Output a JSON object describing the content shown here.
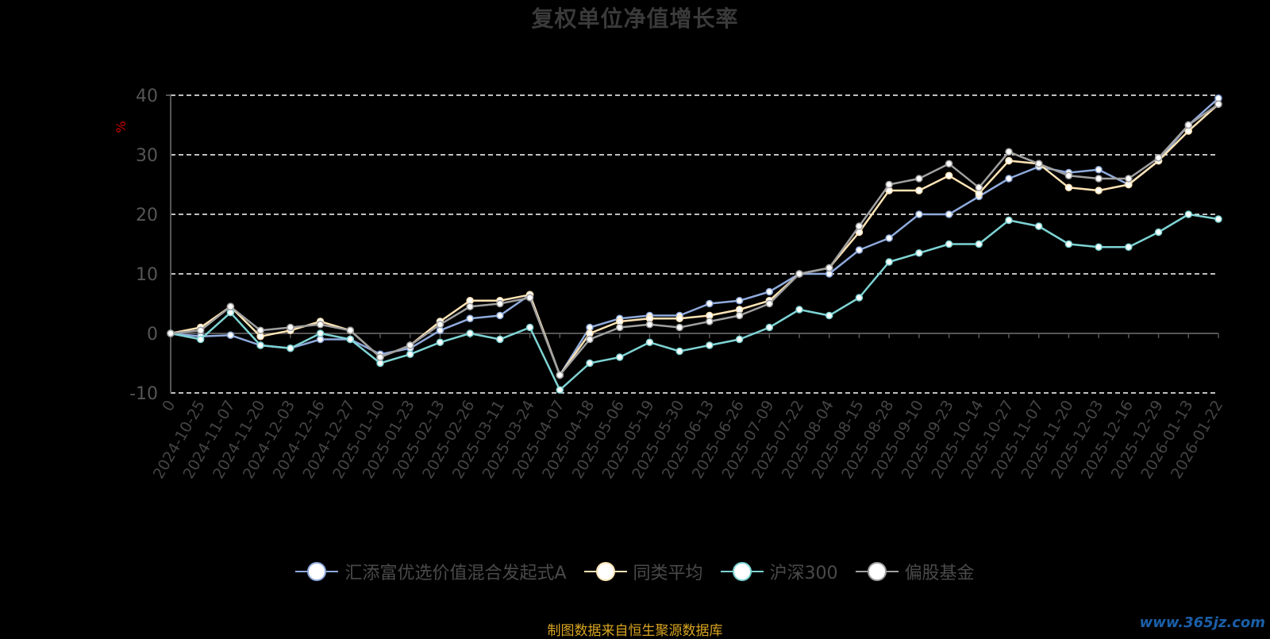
{
  "chart_data": {
    "type": "line",
    "title": "复权单位净值增长率",
    "ylabel": "%",
    "ylim": [
      -10,
      40
    ],
    "yticks": [
      -10,
      0,
      10,
      20,
      30,
      40
    ],
    "grid": true,
    "legend_position": "bottom-center",
    "x": [
      "0",
      "2024-10-25",
      "2024-11-07",
      "2024-11-20",
      "2024-12-03",
      "2024-12-16",
      "2024-12-27",
      "2025-01-10",
      "2025-01-23",
      "2025-02-13",
      "2025-02-26",
      "2025-03-11",
      "2025-03-24",
      "2025-04-07",
      "2025-04-18",
      "2025-05-06",
      "2025-05-19",
      "2025-05-30",
      "2025-06-13",
      "2025-06-26",
      "2025-07-09",
      "2025-07-22",
      "2025-08-04",
      "2025-08-15",
      "2025-08-28",
      "2025-09-10",
      "2025-09-23",
      "2025-10-14",
      "2025-10-27",
      "2025-11-07",
      "2025-11-20",
      "2025-12-03",
      "2025-12-16",
      "2025-12-29",
      "2026-01-13",
      "2026-01-22"
    ],
    "series": [
      {
        "name": "汇添富优选价值混合发起式A",
        "color": "#8faadc",
        "values": [
          0,
          -0.5,
          -0.3,
          -2,
          -2.5,
          -1,
          -1,
          -3.5,
          -2.5,
          0.5,
          2.5,
          3,
          6.5,
          -7,
          1,
          2.5,
          3,
          3,
          5,
          5.5,
          7,
          10,
          10,
          14,
          16,
          20,
          20,
          23,
          26,
          28,
          27,
          27.5,
          25,
          29,
          35,
          39.5
        ]
      },
      {
        "name": "同类平均",
        "color": "#ffe4b5",
        "values": [
          0,
          1,
          4.5,
          -0.5,
          0.5,
          2,
          0.5,
          -4,
          -2,
          2,
          5.5,
          5.5,
          6.5,
          -7,
          0,
          2,
          2.5,
          2.5,
          3,
          4,
          5.5,
          10,
          11,
          17,
          24,
          24,
          26.5,
          23.5,
          29,
          28.5,
          24.5,
          24,
          25,
          29,
          34,
          38.5
        ]
      },
      {
        "name": "沪深300",
        "color": "#7ed3d3",
        "values": [
          0,
          -1,
          3.5,
          -2,
          -2.5,
          0,
          -1,
          -5,
          -3.5,
          -1.5,
          0,
          -1,
          1,
          -9.5,
          -5,
          -4,
          -1.5,
          -3,
          -2,
          -1,
          1,
          4,
          3,
          6,
          12,
          13.5,
          15,
          15,
          19,
          18,
          15,
          14.5,
          14.5,
          17,
          20,
          19.2
        ]
      },
      {
        "name": "偏股基金",
        "color": "#a0a0a0",
        "values": [
          0,
          0.5,
          4.5,
          0.5,
          1,
          1.5,
          0.5,
          -4,
          -2,
          1.5,
          4.5,
          5,
          6,
          -7,
          -1,
          1,
          1.5,
          1,
          2,
          3,
          5,
          10,
          11,
          18,
          25,
          26,
          28.5,
          24.5,
          30.5,
          28.5,
          26.5,
          26,
          26,
          29.5,
          35,
          38.5
        ]
      }
    ]
  },
  "legend": {
    "items": [
      {
        "label": "汇添富优选价值混合发起式A",
        "color": "#8faadc"
      },
      {
        "label": "同类平均",
        "color": "#ffe4b5"
      },
      {
        "label": "沪深300",
        "color": "#7ed3d3"
      },
      {
        "label": "偏股基金",
        "color": "#a0a0a0"
      }
    ]
  },
  "footer": {
    "source": "制图数据来自恒生聚源数据库",
    "watermark": "www.365jz.com"
  },
  "colors": {
    "background": "#000000",
    "grid": "#ffffff",
    "axis": "#555555",
    "ylabel": "#cc0000",
    "source": "#d9a520"
  }
}
